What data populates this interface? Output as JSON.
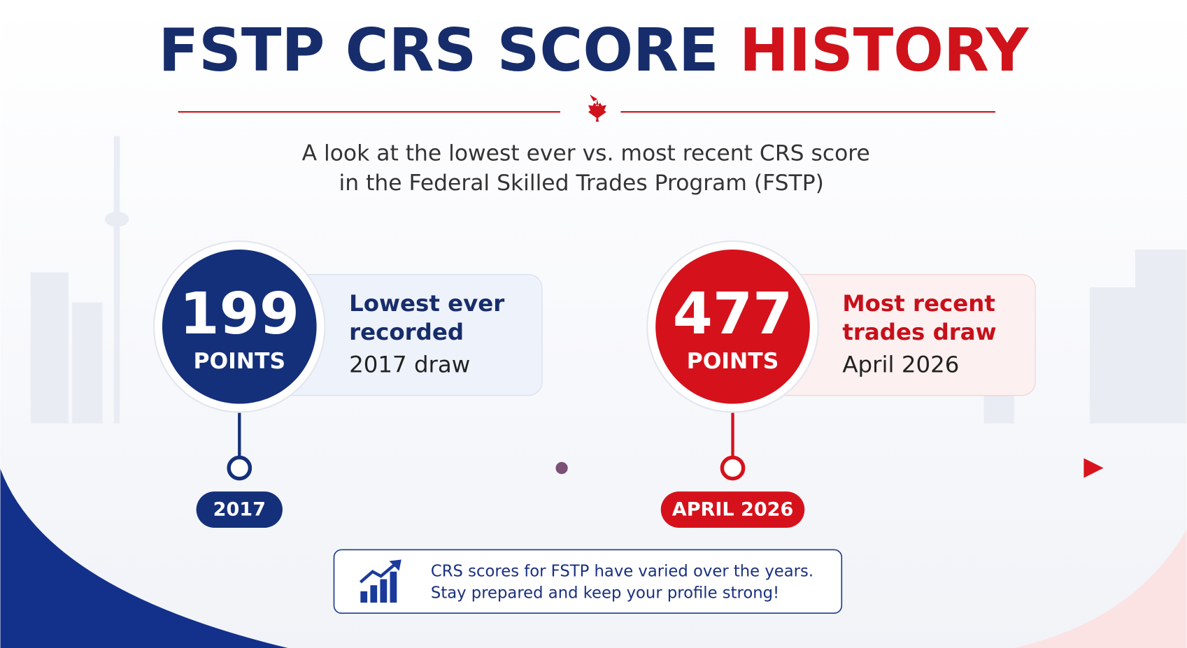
{
  "header": {
    "title": [
      "FSTP CRS SCORE",
      "HISTORY"
    ],
    "subtitle": [
      "A look at the lowest ever vs. most recent CRS score",
      "in the Federal Skilled Trades Program (FSTP)"
    ]
  },
  "cards": [
    {
      "score": 199,
      "unit": "POINTS",
      "label": [
        "Lowest ever",
        "recorded"
      ],
      "detail": "2017 draw",
      "timeline_label": "2017"
    },
    {
      "score": 477,
      "unit": "POINTS",
      "label": [
        "Most recent",
        "trades draw"
      ],
      "detail": "April 2026",
      "timeline_label": "APRIL 2026"
    }
  ],
  "note": [
    "CRS scores for FSTP have varied over the years.",
    "Stay prepared and keep your profile strong!"
  ]
}
